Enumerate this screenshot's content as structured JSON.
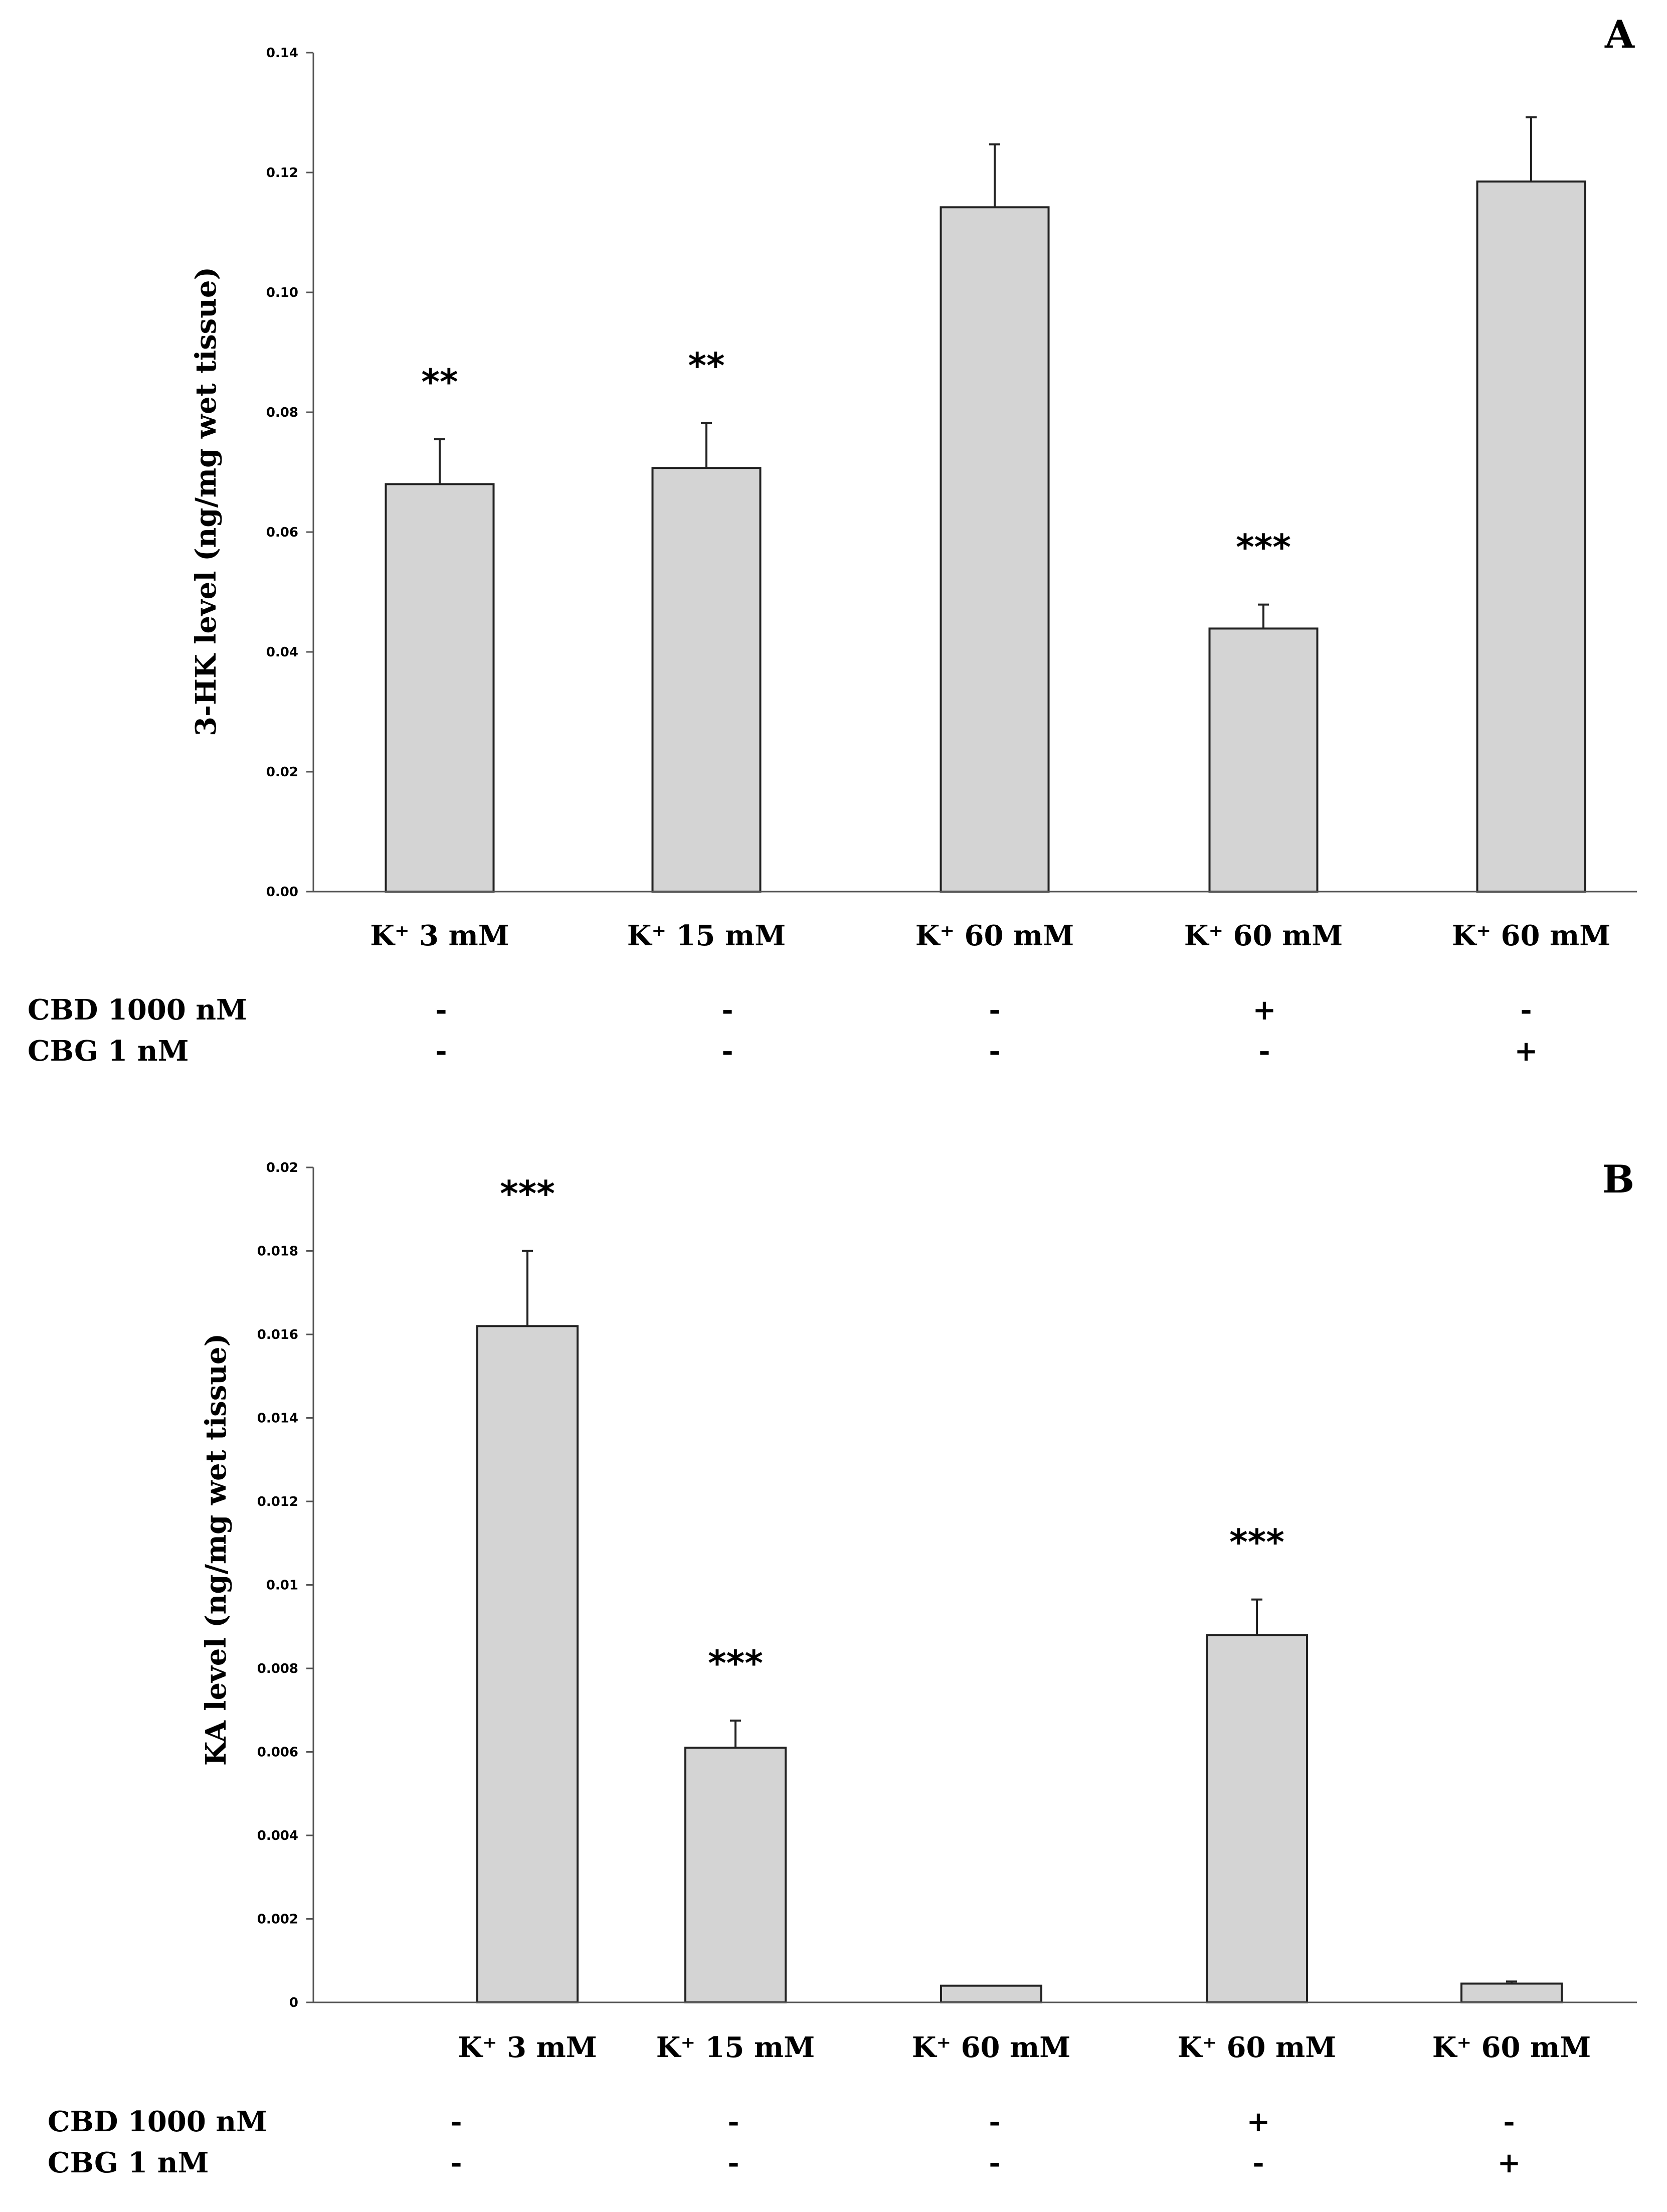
{
  "chart_data": [
    {
      "type": "bar",
      "panel_label": "A",
      "ylabel": "3-HK level (ng/mg wet tissue)",
      "xlabel": "",
      "ylim": [
        0,
        0.14
      ],
      "yticks": [
        "0.00",
        "0.02",
        "0.04",
        "0.06",
        "0.08",
        "0.10",
        "0.12",
        "0.14"
      ],
      "categories": [
        "K⁺ 3 mM",
        "K⁺ 15 mM",
        "K⁺ 60 mM",
        "K⁺ 60 mM",
        "K⁺ 60 mM"
      ],
      "values": [
        0.068,
        0.0707,
        0.1142,
        0.0439,
        0.1185
      ],
      "errors": [
        0.0075,
        0.0075,
        0.0105,
        0.004,
        0.0107
      ],
      "significance": [
        "**",
        "**",
        "",
        "***",
        ""
      ],
      "bar_color": "#d4d4d4",
      "conditions": [
        {
          "label": "CBD 1000 nM",
          "values": [
            "-",
            "-",
            "-",
            "+",
            "-"
          ]
        },
        {
          "label": "CBG 1 nM",
          "values": [
            "-",
            "-",
            "-",
            "-",
            "+"
          ]
        }
      ]
    },
    {
      "type": "bar",
      "panel_label": "B",
      "ylabel": "KA  level (ng/mg wet tissue)",
      "xlabel": "",
      "ylim": [
        0,
        0.02
      ],
      "yticks": [
        "0",
        "0.002",
        "0.004",
        "0.006",
        "0.008",
        "0.01",
        "0.012",
        "0.014",
        "0.016",
        "0.018",
        "0.02"
      ],
      "categories": [
        "K⁺ 3 mM",
        "K⁺ 15 mM",
        "K⁺ 60 mM",
        "K⁺ 60 mM",
        "K⁺ 60 mM"
      ],
      "values": [
        0.0162,
        0.0061,
        0.0004,
        0.0088,
        0.00045
      ],
      "errors": [
        0.0018,
        0.00065,
        0.0,
        0.00085,
        5e-05
      ],
      "significance": [
        "***",
        "***",
        "",
        "***",
        ""
      ],
      "bar_color": "#d4d4d4",
      "conditions": [
        {
          "label": "CBD 1000 nM",
          "values": [
            "-",
            "-",
            "-",
            "+",
            "-"
          ]
        },
        {
          "label": "CBG 1 nM",
          "values": [
            "-",
            "-",
            "-",
            "-",
            "+"
          ]
        }
      ]
    }
  ]
}
